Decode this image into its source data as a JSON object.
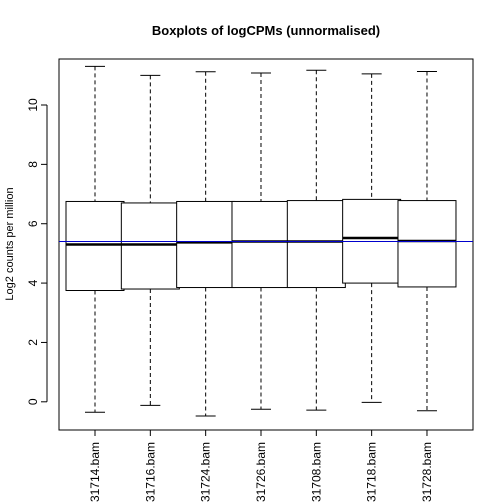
{
  "chart_data": {
    "type": "boxplot",
    "title": "Boxplots of logCPMs (unnormalised)",
    "xlabel": "",
    "ylabel": "Log2 counts per million",
    "ylim": [
      -0.95,
      11.55
    ],
    "yticks": [
      0,
      2,
      4,
      6,
      8,
      10
    ],
    "categories": [
      "31714.bam",
      "31716.bam",
      "31724.bam",
      "31726.bam",
      "31708.bam",
      "31718.bam",
      "31728.bam"
    ],
    "boxes": [
      {
        "min": -0.35,
        "q1": 3.75,
        "median": 5.3,
        "q3": 6.75,
        "max": 11.3
      },
      {
        "min": -0.12,
        "q1": 3.8,
        "median": 5.3,
        "q3": 6.7,
        "max": 11.0
      },
      {
        "min": -0.48,
        "q1": 3.85,
        "median": 5.37,
        "q3": 6.75,
        "max": 11.12
      },
      {
        "min": -0.25,
        "q1": 3.85,
        "median": 5.4,
        "q3": 6.75,
        "max": 11.08
      },
      {
        "min": -0.28,
        "q1": 3.85,
        "median": 5.4,
        "q3": 6.78,
        "max": 11.17
      },
      {
        "min": -0.02,
        "q1": 4.0,
        "median": 5.52,
        "q3": 6.82,
        "max": 11.05
      },
      {
        "min": -0.3,
        "q1": 3.87,
        "median": 5.42,
        "q3": 6.78,
        "max": 11.13
      }
    ],
    "reference_line": {
      "y": 5.4,
      "color": "#0000cc"
    },
    "colors": {
      "box_stroke": "#000000",
      "median": "#000000",
      "whisker": "#000000"
    },
    "grid": false,
    "legend": "none"
  }
}
